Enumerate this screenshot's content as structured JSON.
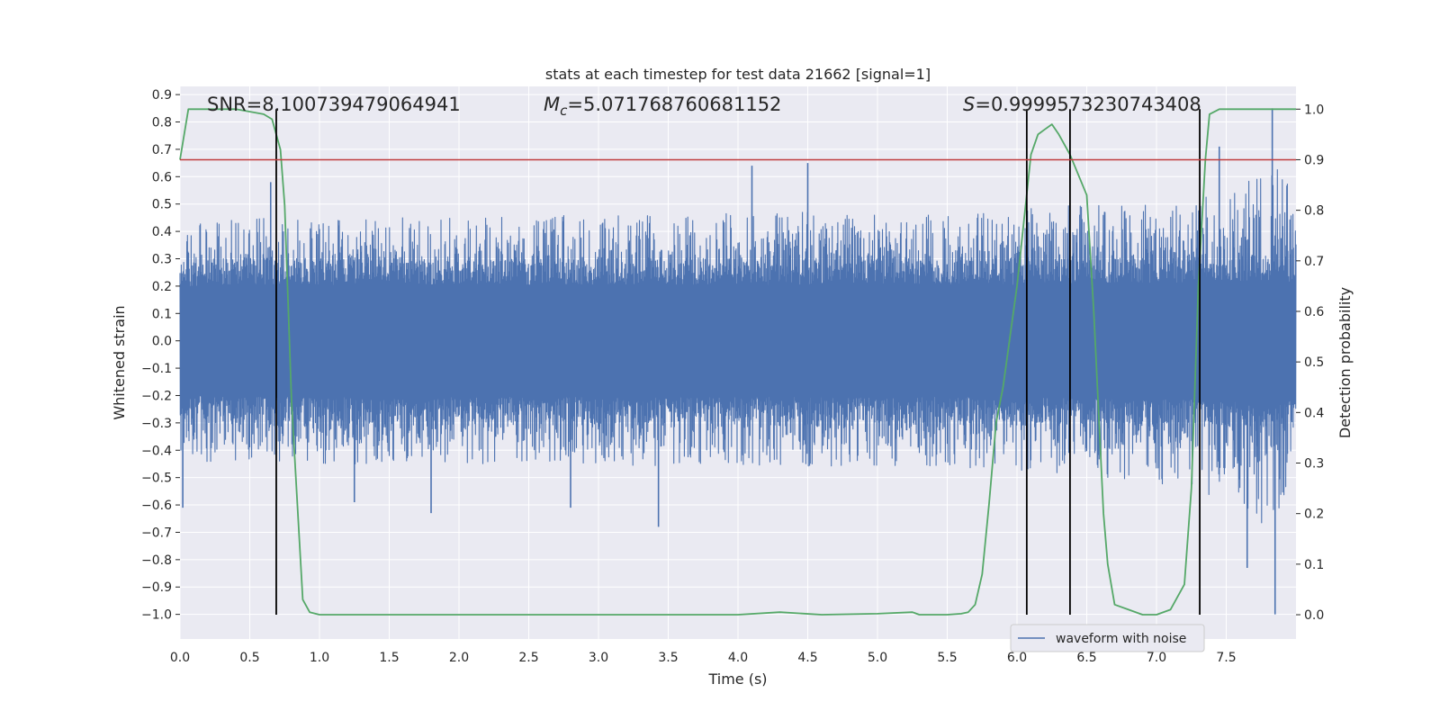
{
  "chart_data": {
    "type": "line",
    "title": "stats at each timestep for test data 21662 [signal=1]",
    "xlabel": "Time (s)",
    "ylabel": "Whitened strain",
    "y2label": "Detection probability",
    "xlim": [
      0.0,
      8.0
    ],
    "ylim": [
      -1.09,
      0.93
    ],
    "y2lim": [
      -0.048,
      1.045
    ],
    "x_ticks": [
      0.0,
      0.5,
      1.0,
      1.5,
      2.0,
      2.5,
      3.0,
      3.5,
      4.0,
      4.5,
      5.0,
      5.5,
      6.0,
      6.5,
      7.0,
      7.5
    ],
    "x_tick_labels": [
      "0.0",
      "0.5",
      "1.0",
      "1.5",
      "2.0",
      "2.5",
      "3.0",
      "3.5",
      "4.0",
      "4.5",
      "5.0",
      "5.5",
      "6.0",
      "6.5",
      "7.0",
      "7.5"
    ],
    "y_ticks": [
      0.9,
      0.8,
      0.7,
      0.6,
      0.5,
      0.4,
      0.3,
      0.2,
      0.1,
      0.0,
      -0.1,
      -0.2,
      -0.3,
      -0.4,
      -0.5,
      -0.6,
      -0.7,
      -0.8,
      -0.9,
      -1.0
    ],
    "y_tick_labels": [
      "0.9",
      "0.8",
      "0.7",
      "0.6",
      "0.5",
      "0.4",
      "0.3",
      "0.2",
      "0.1",
      "0.0",
      "−0.1",
      "−0.2",
      "−0.3",
      "−0.4",
      "−0.5",
      "−0.6",
      "−0.7",
      "−0.8",
      "−0.9",
      "−1.0"
    ],
    "y2_ticks": [
      1.0,
      0.9,
      0.8,
      0.7,
      0.6,
      0.5,
      0.4,
      0.3,
      0.2,
      0.1,
      0.0
    ],
    "y2_tick_labels": [
      "1.0",
      "0.9",
      "0.8",
      "0.7",
      "0.6",
      "0.5",
      "0.4",
      "0.3",
      "0.2",
      "0.1",
      "0.0"
    ],
    "grid": true,
    "legend": {
      "placement": "lower-right",
      "entries": [
        "waveform with noise"
      ]
    },
    "annotations": {
      "snr": "SNR=8.100739479064941",
      "mc_symbol": "M",
      "mc_sub": "c",
      "mc_value": "=5.071768760681152",
      "s_symbol": "S",
      "s_value": "=0.9999573230743408"
    },
    "threshold": {
      "y2": 0.9,
      "color": "#c03d3e"
    },
    "vertical_lines_x": [
      0.69,
      6.07,
      6.38,
      7.31
    ],
    "series": [
      {
        "name": "waveform with noise",
        "axis": "left",
        "color": "#4c72b0",
        "envelope": {
          "x": [
            0.0,
            0.5,
            1.0,
            1.5,
            2.0,
            2.5,
            3.0,
            3.5,
            4.0,
            4.5,
            5.0,
            5.5,
            6.0,
            6.5,
            7.0,
            7.25,
            7.5,
            7.7,
            7.85,
            8.0
          ],
          "upper": [
            0.42,
            0.45,
            0.44,
            0.45,
            0.45,
            0.46,
            0.46,
            0.46,
            0.47,
            0.47,
            0.46,
            0.46,
            0.48,
            0.5,
            0.52,
            0.55,
            0.58,
            0.62,
            0.68,
            0.55
          ],
          "lower": [
            -0.45,
            -0.44,
            -0.45,
            -0.45,
            -0.45,
            -0.45,
            -0.46,
            -0.46,
            -0.46,
            -0.46,
            -0.46,
            -0.46,
            -0.48,
            -0.5,
            -0.52,
            -0.55,
            -0.58,
            -0.64,
            -0.72,
            -0.55
          ],
          "core": [
            0.28,
            0.29,
            0.29,
            0.29,
            0.29,
            0.29,
            0.29,
            0.29,
            0.29,
            0.29,
            0.29,
            0.29,
            0.29,
            0.3,
            0.3,
            0.3,
            0.31,
            0.31,
            0.31,
            0.3
          ]
        },
        "spikes": {
          "x": [
            0.02,
            0.65,
            1.25,
            1.8,
            2.8,
            3.43,
            4.1,
            4.5,
            7.45,
            7.65,
            7.83,
            7.85
          ],
          "y": [
            -0.61,
            0.58,
            -0.59,
            -0.63,
            -0.61,
            -0.68,
            0.64,
            0.65,
            0.71,
            -0.83,
            0.85,
            -1.0
          ]
        }
      },
      {
        "name": "detection probability",
        "axis": "right",
        "color": "#55a868",
        "x": [
          0.0,
          0.06,
          0.2,
          0.4,
          0.6,
          0.66,
          0.72,
          0.75,
          0.8,
          0.88,
          0.93,
          1.0,
          1.5,
          2.0,
          2.5,
          3.0,
          3.5,
          4.0,
          4.3,
          4.6,
          5.0,
          5.25,
          5.3,
          5.5,
          5.6,
          5.65,
          5.7,
          5.75,
          5.8,
          5.85,
          5.9,
          6.0,
          6.1,
          6.15,
          6.2,
          6.25,
          6.3,
          6.38,
          6.5,
          6.55,
          6.62,
          6.65,
          6.7,
          6.8,
          6.9,
          7.0,
          7.1,
          7.2,
          7.25,
          7.3,
          7.35,
          7.38,
          7.45,
          7.6,
          8.0
        ],
        "y": [
          0.9,
          1.0,
          1.0,
          1.0,
          0.99,
          0.98,
          0.92,
          0.81,
          0.42,
          0.03,
          0.005,
          0.0,
          0.0,
          0.0,
          0.0,
          0.0,
          0.0,
          0.0,
          0.005,
          0.0,
          0.002,
          0.005,
          0.0,
          0.0,
          0.002,
          0.005,
          0.02,
          0.08,
          0.22,
          0.38,
          0.45,
          0.65,
          0.91,
          0.95,
          0.96,
          0.97,
          0.95,
          0.91,
          0.83,
          0.6,
          0.2,
          0.1,
          0.02,
          0.01,
          0.0,
          0.0,
          0.01,
          0.06,
          0.25,
          0.65,
          0.9,
          0.99,
          1.0,
          1.0,
          1.0
        ]
      }
    ]
  }
}
